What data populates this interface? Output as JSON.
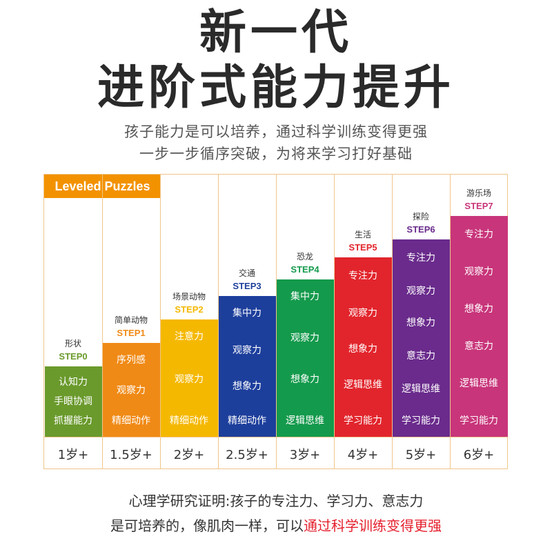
{
  "headline": {
    "line1": "新一代",
    "line2": "进阶式能力提升"
  },
  "subtitle": {
    "line1": "孩子能力是可以培养，通过科学训练变得更强",
    "line2": "一步一步循序突破，为将来学习打好基础"
  },
  "brand_tag": "Leveled Puzzles",
  "steps": [
    {
      "title": "形状",
      "step": "STEP0",
      "color": "#6a9a2c",
      "step_color": "#6a9a2c",
      "skills": [
        "认知力",
        "手眼协调",
        "抓握能力"
      ],
      "age": "1岁+"
    },
    {
      "title": "简单动物",
      "step": "STEP1",
      "color": "#f08a16",
      "step_color": "#f08a16",
      "skills": [
        "序列感",
        "观察力",
        "精细动作"
      ],
      "age": "1.5岁+"
    },
    {
      "title": "场景动物",
      "step": "STEP2",
      "color": "#f5b800",
      "step_color": "#f5b800",
      "skills": [
        "注意力",
        "观察力",
        "精细动作"
      ],
      "age": "2岁+"
    },
    {
      "title": "交通",
      "step": "STEP3",
      "color": "#1d3f9c",
      "step_color": "#1d3f9c",
      "skills": [
        "集中力",
        "观察力",
        "想象力",
        "精细动作"
      ],
      "age": "2.5岁+"
    },
    {
      "title": "恐龙",
      "step": "STEP4",
      "color": "#149a4c",
      "step_color": "#149a4c",
      "skills": [
        "集中力",
        "观察力",
        "想象力",
        "逻辑思维"
      ],
      "age": "3岁+"
    },
    {
      "title": "生活",
      "step": "STEP5",
      "color": "#e2252c",
      "step_color": "#e2252c",
      "skills": [
        "专注力",
        "观察力",
        "想象力",
        "逻辑思维",
        "学习能力"
      ],
      "age": "4岁+"
    },
    {
      "title": "探险",
      "step": "STEP6",
      "color": "#6a2b8c",
      "step_color": "#6a2b8c",
      "skills": [
        "专注力",
        "观察力",
        "想象力",
        "意志力",
        "逻辑思维",
        "学习能力"
      ],
      "age": "5岁+"
    },
    {
      "title": "游乐场",
      "step": "STEP7",
      "color": "#c8357a",
      "step_color": "#c8357a",
      "skills": [
        "专注力",
        "观察力",
        "想象力",
        "意志力",
        "逻辑思维",
        "学习能力"
      ],
      "age": "6岁+"
    }
  ],
  "footer": {
    "line1": "心理学研究证明:孩子的专注力、学习力、意志力",
    "line2_prefix": "是可培养的，像肌肉一样，可以",
    "line2_highlight": "通过科学训练变得更强"
  }
}
